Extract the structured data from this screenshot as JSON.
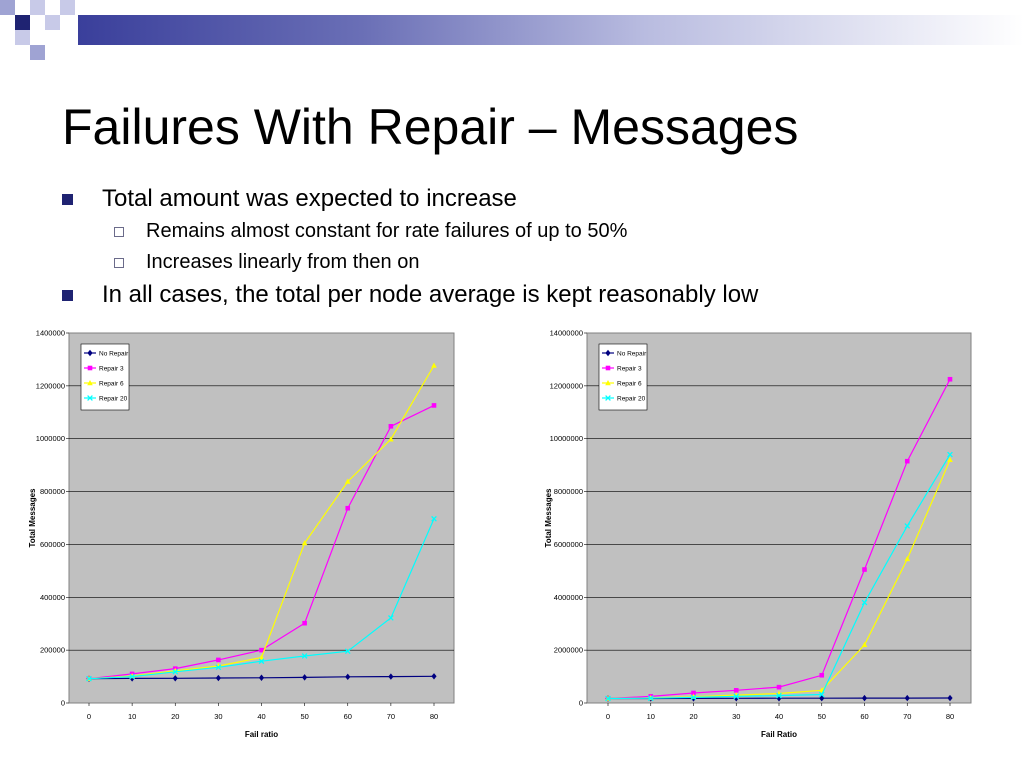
{
  "slide": {
    "title": "Failures With Repair – Messages",
    "bullets": [
      {
        "text": "Total amount was expected to increase",
        "sub": [
          "Remains almost constant for rate failures of up to 50%",
          "Increases linearly from then on"
        ]
      },
      {
        "text": "In all cases, the total per node average is kept reasonably low",
        "sub": []
      }
    ]
  },
  "chart_data": [
    {
      "type": "line",
      "xlabel": "Fail ratio",
      "ylabel": "Total Messages",
      "x": [
        0,
        10,
        20,
        30,
        40,
        50,
        60,
        70,
        80
      ],
      "ylim": [
        0,
        1400000
      ],
      "yticks": [
        "0",
        "200000",
        "400000",
        "600000",
        "800000",
        "1000000",
        "1200000",
        "1400000"
      ],
      "grid": true,
      "background": "#c0c0c0",
      "legend_position": "top-left",
      "series": [
        {
          "name": "No Repair",
          "color": "#000080",
          "marker": "diamond",
          "values": [
            92000,
            93000,
            93500,
            94500,
            95500,
            97000,
            99000,
            100000,
            101000
          ]
        },
        {
          "name": "Repair 3",
          "color": "#ff00ff",
          "marker": "square",
          "values": [
            92000,
            110000,
            130000,
            163000,
            200000,
            302000,
            737000,
            1047000,
            1126000
          ]
        },
        {
          "name": "Repair 6",
          "color": "#ffff00",
          "marker": "triangle",
          "values": [
            92000,
            102000,
            122000,
            140000,
            172000,
            605000,
            838000,
            998000,
            1277000
          ]
        },
        {
          "name": "Repair 20",
          "color": "#00ffff",
          "marker": "x",
          "values": [
            92000,
            100000,
            118000,
            135000,
            158000,
            178000,
            196000,
            322000,
            697000
          ]
        }
      ]
    },
    {
      "type": "line",
      "xlabel": "Fail Ratio",
      "ylabel": "Total Messages",
      "x": [
        0,
        10,
        20,
        30,
        40,
        50,
        60,
        70,
        80
      ],
      "ylim": [
        0,
        14000000
      ],
      "yticks": [
        "0",
        "2000000",
        "4000000",
        "6000000",
        "8000000",
        "10000000",
        "12000000",
        "14000000"
      ],
      "grid": true,
      "background": "#c0c0c0",
      "legend_position": "top-left",
      "series": [
        {
          "name": "No Repair",
          "color": "#000080",
          "marker": "diamond",
          "values": [
            170000,
            172000,
            175000,
            178000,
            180000,
            182000,
            184000,
            186000,
            188000
          ]
        },
        {
          "name": "Repair 3",
          "color": "#ff00ff",
          "marker": "square",
          "values": [
            170000,
            250000,
            380000,
            480000,
            600000,
            1050000,
            5050000,
            9150000,
            12250000
          ]
        },
        {
          "name": "Repair 6",
          "color": "#ffff00",
          "marker": "triangle",
          "values": [
            170000,
            190000,
            240000,
            300000,
            360000,
            480000,
            2200000,
            5450000,
            9200000
          ]
        },
        {
          "name": "Repair 20",
          "color": "#00ffff",
          "marker": "x",
          "values": [
            170000,
            180000,
            210000,
            250000,
            280000,
            320000,
            3800000,
            6700000,
            9400000
          ]
        }
      ]
    }
  ]
}
